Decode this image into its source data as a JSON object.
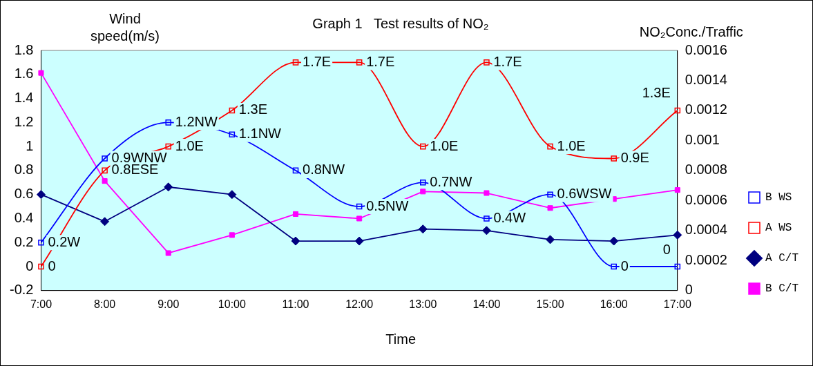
{
  "chart_data": {
    "type": "line",
    "title": "Graph 1   Test results of NO₂",
    "xlabel": "Time",
    "ylabel": "Wind speed(m/s)",
    "y2label": "NO₂Conc./Traffic",
    "categories": [
      "7:00",
      "8:00",
      "9:00",
      "10:00",
      "11:00",
      "12:00",
      "13:00",
      "14:00",
      "15:00",
      "16:00",
      "17:00"
    ],
    "series": [
      {
        "name": "B WS",
        "color": "#0000ff",
        "marker": "square",
        "values": [
          0.2,
          0.9,
          1.2,
          1.1,
          0.8,
          0.5,
          0.7,
          0.4,
          0.6,
          0,
          0
        ],
        "value_labels": [
          "0.2W",
          "0.9WNW",
          "1.2NW",
          "1.1NW",
          "0.8NW",
          "0.5NW",
          "0.7NW",
          "0.4W",
          "0.6WSW",
          "0",
          "0"
        ]
      },
      {
        "name": "A WS",
        "color": "#ff0000",
        "marker": "square",
        "values": [
          0,
          0.8,
          1.0,
          1.3,
          1.7,
          1.7,
          1.0,
          1.7,
          1.0,
          0.9,
          1.3
        ],
        "value_labels": [
          "0",
          "0.8ESE",
          "1.0E",
          "1.3E",
          "1.7E",
          "1.7E",
          "1.0E",
          "1.7E",
          "1.0E",
          "0.9E",
          "1.3E"
        ]
      },
      {
        "name": "A C/T",
        "color": "#000080",
        "marker": "diamond",
        "axis": "y2",
        "values": [
          0.00064,
          0.00046,
          0.00069,
          0.00064,
          0.00033,
          0.00033,
          0.00041,
          0.0004,
          0.00034,
          0.00033,
          0.00037
        ]
      },
      {
        "name": "B C/T",
        "color": "#ff00ff",
        "marker": "square",
        "axis": "y2",
        "values": [
          0.00145,
          0.00073,
          0.00025,
          0.00037,
          0.00051,
          0.00048,
          0.00066,
          0.00065,
          0.00055,
          0.00061,
          0.00067
        ]
      }
    ],
    "ylim": [
      -0.2,
      1.8
    ],
    "yticks": [
      -0.2,
      0,
      0.2,
      0.4,
      0.6,
      0.8,
      1,
      1.2,
      1.4,
      1.6,
      1.8
    ],
    "y2lim": [
      0,
      0.0016
    ],
    "y2ticks": [
      0,
      0.0002,
      0.0004,
      0.0006,
      0.0008,
      0.001,
      0.0012,
      0.0014,
      0.0016
    ],
    "grid": false,
    "legend": "right"
  }
}
